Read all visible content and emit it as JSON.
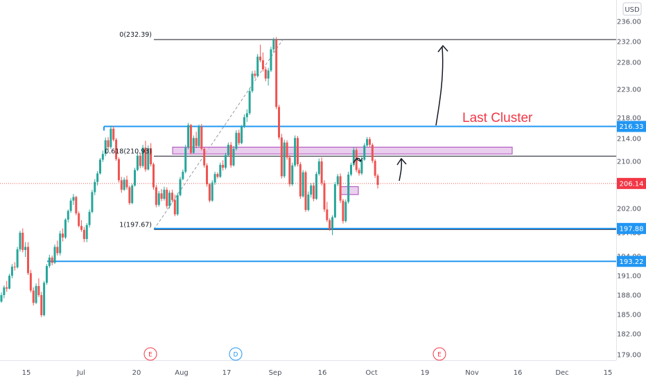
{
  "currency": "USD",
  "chart_data": {
    "type": "candlestick",
    "ylim": [
      177.5,
      238.0
    ],
    "y_ticks": [
      "236.00",
      "232.00",
      "228.00",
      "223.00",
      "218.00",
      "214.00",
      "210.00",
      "206.00",
      "202.00",
      "197.00",
      "194.00",
      "191.00",
      "188.00",
      "185.00",
      "182.00",
      "179.00"
    ],
    "x_ticks": [
      "15",
      "Jul",
      "20",
      "Aug",
      "17",
      "Sep",
      "16",
      "Oct",
      "19",
      "Nov",
      "16",
      "Dec",
      "15"
    ],
    "candles": [
      [
        187.0,
        188.4,
        186.8,
        188.0
      ],
      [
        188.0,
        189.5,
        187.5,
        189.2
      ],
      [
        189.2,
        190.2,
        188.5,
        189.0
      ],
      [
        189.0,
        191.3,
        188.9,
        191.0
      ],
      [
        191.0,
        192.8,
        190.6,
        192.4
      ],
      [
        192.4,
        193.1,
        191.8,
        192.3
      ],
      [
        192.3,
        195.2,
        192.1,
        194.9
      ],
      [
        194.9,
        197.4,
        194.6,
        197.0
      ],
      [
        197.0,
        197.9,
        194.5,
        194.8
      ],
      [
        194.8,
        195.8,
        193.9,
        195.2
      ],
      [
        195.2,
        195.8,
        191.1,
        191.4
      ],
      [
        191.4,
        191.9,
        188.4,
        188.7
      ],
      [
        188.7,
        189.2,
        186.4,
        186.8
      ],
      [
        186.8,
        189.8,
        186.6,
        189.4
      ],
      [
        189.4,
        190.6,
        187.7,
        188.0
      ],
      [
        188.0,
        188.5,
        184.6,
        184.9
      ],
      [
        184.9,
        190.2,
        184.7,
        189.9
      ],
      [
        189.9,
        192.8,
        189.6,
        192.5
      ],
      [
        192.5,
        194.2,
        192.2,
        193.8
      ],
      [
        193.8,
        194.1,
        192.6,
        193.0
      ],
      [
        193.0,
        195.5,
        192.8,
        195.2
      ],
      [
        195.2,
        196.0,
        194.1,
        194.4
      ],
      [
        194.4,
        197.4,
        194.1,
        196.9
      ],
      [
        196.9,
        197.9,
        195.9,
        196.4
      ],
      [
        196.4,
        200.0,
        196.2,
        199.7
      ],
      [
        199.7,
        201.8,
        199.1,
        201.5
      ],
      [
        201.5,
        203.7,
        201.1,
        203.3
      ],
      [
        203.3,
        204.4,
        202.6,
        203.9
      ],
      [
        203.9,
        204.1,
        200.6,
        201.0
      ],
      [
        201.0,
        201.4,
        198.1,
        198.4
      ],
      [
        198.4,
        199.6,
        197.2,
        197.6
      ],
      [
        197.6,
        198.2,
        195.8,
        196.2
      ],
      [
        196.2,
        199.0,
        195.8,
        198.6
      ],
      [
        198.6,
        201.8,
        198.1,
        201.3
      ],
      [
        201.3,
        205.1,
        201.0,
        204.7
      ],
      [
        204.7,
        206.9,
        204.2,
        206.4
      ],
      [
        206.4,
        208.3,
        205.8,
        207.9
      ],
      [
        207.9,
        210.6,
        207.7,
        210.3
      ],
      [
        210.3,
        211.9,
        209.9,
        211.3
      ],
      [
        211.3,
        214.2,
        210.9,
        213.7
      ],
      [
        213.7,
        214.3,
        212.1,
        212.5
      ],
      [
        212.5,
        216.5,
        212.2,
        215.9
      ],
      [
        215.9,
        216.4,
        213.5,
        213.8
      ],
      [
        213.8,
        214.1,
        210.1,
        210.4
      ],
      [
        210.4,
        210.7,
        206.3,
        206.7
      ],
      [
        206.7,
        207.3,
        204.6,
        205.1
      ],
      [
        205.1,
        207.2,
        204.9,
        206.8
      ],
      [
        206.8,
        207.5,
        205.1,
        205.5
      ],
      [
        205.5,
        205.8,
        202.6,
        202.9
      ],
      [
        202.9,
        206.1,
        202.7,
        205.8
      ],
      [
        205.8,
        208.9,
        205.6,
        208.5
      ],
      [
        208.5,
        211.5,
        208.3,
        211.0
      ],
      [
        211.0,
        211.5,
        208.8,
        209.2
      ],
      [
        209.2,
        212.9,
        208.9,
        212.4
      ],
      [
        212.4,
        213.6,
        208.2,
        208.6
      ],
      [
        208.6,
        212.8,
        208.4,
        212.3
      ],
      [
        212.3,
        213.2,
        209.1,
        209.5
      ],
      [
        209.5,
        209.8,
        205.1,
        205.5
      ],
      [
        205.5,
        205.9,
        202.2,
        202.6
      ],
      [
        202.6,
        204.9,
        202.3,
        204.5
      ],
      [
        204.5,
        205.2,
        203.2,
        203.6
      ],
      [
        203.6,
        205.6,
        203.3,
        205.1
      ],
      [
        205.1,
        205.5,
        202.0,
        202.4
      ],
      [
        202.4,
        205.0,
        202.0,
        204.6
      ],
      [
        204.6,
        205.1,
        203.0,
        203.4
      ],
      [
        203.4,
        204.3,
        200.4,
        200.8
      ],
      [
        200.8,
        204.6,
        200.5,
        204.2
      ],
      [
        204.2,
        207.3,
        204.0,
        206.9
      ],
      [
        206.9,
        208.6,
        206.7,
        208.2
      ],
      [
        208.2,
        212.9,
        207.9,
        212.4
      ],
      [
        212.4,
        217.0,
        212.1,
        216.6
      ],
      [
        216.6,
        216.8,
        211.2,
        211.5
      ],
      [
        211.5,
        214.6,
        211.3,
        214.1
      ],
      [
        214.1,
        215.3,
        212.3,
        212.7
      ],
      [
        212.7,
        216.7,
        212.4,
        216.3
      ],
      [
        216.3,
        216.8,
        211.9,
        212.2
      ],
      [
        212.2,
        212.4,
        208.9,
        209.3
      ],
      [
        209.3,
        209.7,
        205.6,
        206.0
      ],
      [
        206.0,
        206.2,
        203.0,
        203.3
      ],
      [
        203.3,
        206.7,
        203.1,
        206.3
      ],
      [
        206.3,
        208.2,
        205.9,
        207.8
      ],
      [
        207.8,
        208.1,
        207.0,
        207.3
      ],
      [
        207.3,
        209.8,
        207.1,
        209.4
      ],
      [
        209.4,
        210.2,
        208.4,
        208.9
      ],
      [
        208.9,
        211.5,
        208.6,
        211.1
      ],
      [
        211.1,
        213.3,
        210.8,
        212.9
      ],
      [
        212.9,
        213.4,
        208.9,
        209.3
      ],
      [
        209.3,
        212.7,
        209.1,
        212.2
      ],
      [
        212.2,
        215.6,
        211.9,
        215.1
      ],
      [
        215.1,
        215.7,
        212.8,
        213.2
      ],
      [
        213.2,
        216.6,
        213.0,
        216.2
      ],
      [
        216.2,
        218.6,
        216.0,
        218.1
      ],
      [
        218.1,
        219.5,
        217.2,
        218.8
      ],
      [
        218.8,
        223.2,
        218.5,
        222.7
      ],
      [
        222.7,
        226.4,
        222.4,
        225.9
      ],
      [
        225.9,
        226.5,
        225.0,
        225.5
      ],
      [
        225.5,
        229.6,
        225.2,
        229.1
      ],
      [
        229.1,
        231.4,
        228.0,
        228.4
      ],
      [
        228.4,
        229.9,
        226.3,
        226.7
      ],
      [
        226.7,
        227.2,
        224.5,
        225.0
      ],
      [
        225.0,
        227.0,
        223.7,
        226.5
      ],
      [
        226.5,
        231.0,
        226.2,
        230.5
      ],
      [
        230.5,
        232.8,
        229.9,
        232.3
      ],
      [
        232.3,
        232.9,
        219.5,
        219.9
      ],
      [
        219.9,
        220.3,
        213.8,
        214.2
      ],
      [
        214.2,
        214.9,
        207.0,
        207.4
      ],
      [
        207.4,
        213.8,
        207.1,
        213.3
      ],
      [
        213.3,
        213.7,
        210.3,
        210.7
      ],
      [
        210.7,
        211.1,
        205.6,
        206.0
      ],
      [
        206.0,
        209.8,
        205.7,
        209.3
      ],
      [
        209.3,
        214.6,
        209.0,
        214.1
      ],
      [
        214.1,
        214.5,
        209.1,
        209.5
      ],
      [
        209.5,
        209.9,
        203.6,
        204.0
      ],
      [
        204.0,
        208.5,
        203.8,
        208.1
      ],
      [
        208.1,
        208.4,
        201.3,
        201.7
      ],
      [
        201.7,
        204.8,
        201.4,
        204.3
      ],
      [
        204.3,
        206.2,
        203.8,
        205.8
      ],
      [
        205.8,
        206.3,
        203.2,
        203.6
      ],
      [
        203.6,
        208.2,
        203.4,
        207.8
      ],
      [
        207.8,
        210.5,
        207.5,
        210.0
      ],
      [
        210.0,
        210.7,
        205.8,
        206.2
      ],
      [
        206.2,
        206.7,
        201.3,
        201.8
      ],
      [
        201.8,
        203.1,
        199.2,
        199.6
      ],
      [
        199.6,
        200.0,
        197.4,
        197.8
      ],
      [
        197.8,
        200.6,
        196.7,
        200.2
      ],
      [
        200.2,
        206.4,
        200.0,
        206.0
      ],
      [
        206.0,
        207.8,
        205.7,
        207.4
      ],
      [
        207.4,
        207.9,
        202.9,
        203.3
      ],
      [
        203.3,
        203.6,
        198.9,
        199.4
      ],
      [
        199.4,
        203.5,
        199.1,
        203.1
      ],
      [
        203.1,
        208.2,
        202.8,
        207.7
      ],
      [
        207.7,
        209.8,
        207.4,
        209.4
      ],
      [
        209.4,
        212.5,
        209.1,
        212.0
      ],
      [
        212.0,
        212.4,
        208.1,
        208.5
      ],
      [
        208.5,
        208.9,
        207.5,
        207.9
      ],
      [
        207.9,
        210.8,
        207.6,
        210.3
      ],
      [
        210.3,
        213.2,
        210.1,
        212.8
      ],
      [
        212.8,
        214.3,
        212.5,
        213.9
      ],
      [
        213.9,
        214.3,
        212.5,
        212.9
      ],
      [
        212.9,
        213.2,
        209.7,
        210.1
      ],
      [
        210.1,
        210.4,
        207.1,
        207.5
      ],
      [
        207.5,
        207.8,
        205.3,
        205.9
      ]
    ],
    "labels": {
      "fib_0": "0(232.39)",
      "fib_618": "0.618(210.93)",
      "fib_1": "1(197.67)",
      "last_cluster": "Last Cluster"
    },
    "levels": {
      "fib_0": 232.39,
      "fib_618": 210.93,
      "fib_1": 197.67,
      "last_cluster": 216.33,
      "support_1": 197.88,
      "support_2": 193.22,
      "cluster_zone": [
        211.3,
        212.5
      ],
      "small_zone": [
        204.3,
        205.6
      ],
      "current": 206.14
    },
    "price_tags": [
      {
        "text": "216.33",
        "value": 216.33,
        "color": "#2196f3"
      },
      {
        "text": "206.14",
        "value": 206.14,
        "color": "#f23645"
      },
      {
        "text": "197.88",
        "value": 197.88,
        "color": "#2196f3"
      },
      {
        "text": "193.22",
        "value": 193.22,
        "color": "#2196f3"
      }
    ],
    "events": [
      {
        "letter": "E",
        "x_label": "20"
      },
      {
        "letter": "D",
        "x_label": "17"
      },
      {
        "letter": "E",
        "x_label": "19"
      }
    ],
    "colors": {
      "up": "#26a69a",
      "down": "#ef5350",
      "blue": "#2196f3",
      "zone": "#e1bee7",
      "zone_stroke": "#ab47bc"
    }
  }
}
